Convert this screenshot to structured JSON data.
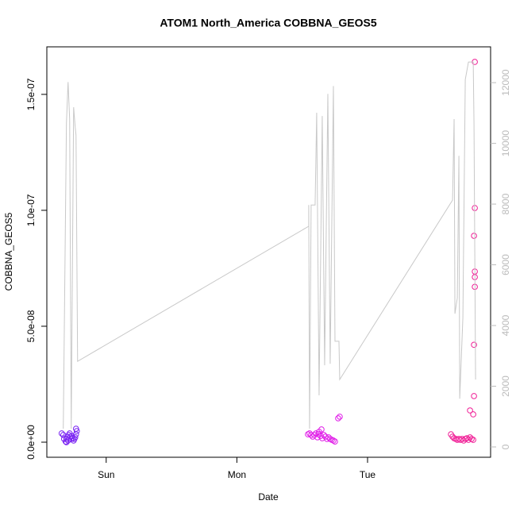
{
  "chart_data": {
    "type": "scatter",
    "title": "ATOM1 North_America COBBNA_GEOS5",
    "xlabel": "Date",
    "ylabel": "COBBNA_GEOS5",
    "xlim": [
      -10.9,
      70.6
    ],
    "xticks": [
      {
        "value": 0,
        "label": "Sun"
      },
      {
        "value": 24,
        "label": "Mon"
      },
      {
        "value": 48,
        "label": "Tue"
      }
    ],
    "ylim": [
      -6.5e-09,
      1.705e-07
    ],
    "yticks": [
      {
        "value": 0,
        "label": "0.0e+00"
      },
      {
        "value": 5e-08,
        "label": "5.0e-08"
      },
      {
        "value": 1e-07,
        "label": "1.0e-07"
      },
      {
        "value": 1.5e-07,
        "label": "1.5e-07"
      }
    ],
    "y2lim": [
      -340,
      13180
    ],
    "y2ticks": [
      0,
      2000,
      4000,
      6000,
      8000,
      10000,
      12000
    ],
    "series": [
      {
        "type": "scatter",
        "color": "#7a24f2",
        "x": [
          -8.17,
          -7.88,
          -7.73,
          -7.44,
          -7.3,
          -7.15,
          -6.86,
          -6.71,
          -6.57,
          -6.42,
          -6.27,
          -5.98,
          -5.84,
          -5.69,
          -5.54,
          -5.54,
          -5.4,
          -7.3,
          -7.0,
          -6.13
        ],
        "values": [
          3.8e-09,
          3.1e-09,
          1.4e-09,
          3e-10,
          1.4e-09,
          2.4e-09,
          3.1e-09,
          3.8e-09,
          2.4e-09,
          1.4e-09,
          2.7e-09,
          7e-10,
          1.4e-09,
          2.1e-09,
          3.4e-09,
          5.8e-09,
          4.8e-09,
          0,
          7e-10,
          1.7e-09
        ]
      },
      {
        "type": "scatter",
        "color": "#e01ee8",
        "x": [
          37.06,
          37.35,
          37.64,
          37.93,
          38.23,
          38.52,
          38.81,
          38.96,
          39.1,
          39.39,
          39.68,
          39.98,
          40.27,
          40.56,
          40.85,
          41.14,
          41.44,
          41.73,
          42.02,
          42.6,
          42.89,
          39.54
        ],
        "values": [
          3.4e-09,
          3.8e-09,
          3.1e-09,
          2.4e-09,
          3.1e-09,
          3.8e-09,
          2.1e-09,
          3.4e-09,
          4.5e-09,
          2.7e-09,
          1.7e-09,
          3.1e-09,
          2.4e-09,
          1.4e-09,
          2.1e-09,
          1.4e-09,
          1e-09,
          7e-10,
          3e-10,
          1.03e-08,
          1.1e-08,
          5.5e-09
        ]
      },
      {
        "type": "scatter",
        "color": "#f01e96",
        "x": [
          63.32,
          63.61,
          63.9,
          64.2,
          64.49,
          64.78,
          65.07,
          65.36,
          65.66,
          65.95,
          66.24,
          66.53,
          66.82,
          67.11,
          67.41,
          66.82,
          67.41,
          67.7,
          67.7,
          67.55,
          67.7,
          67.7,
          67.7,
          67.55,
          67.55
        ],
        "values": [
          3.4e-09,
          2.4e-09,
          1.7e-09,
          1.4e-09,
          1e-09,
          1.4e-09,
          1e-09,
          1.4e-09,
          7e-10,
          1.4e-09,
          1.7e-09,
          1e-09,
          2.1e-09,
          1.4e-09,
          1e-09,
          1.37e-08,
          1.2e-08,
          1.64e-07,
          1.01e-07,
          8.9e-08,
          7.36e-08,
          7.12e-08,
          6.7e-08,
          4.2e-08,
          1.99e-08
        ]
      },
      {
        "type": "line",
        "axis": "y2",
        "color": "#c8c8c8",
        "x": [
          -7.88,
          -7.3,
          -7.0,
          -6.71,
          -6.57,
          -6.42,
          -5.98,
          -5.69,
          -5.54,
          -5.25,
          37.2,
          37.2,
          37.35,
          37.64,
          38.37,
          38.66,
          39.1,
          39.68,
          40.12,
          40.71,
          41.14,
          41.73,
          42.02,
          42.75,
          42.89,
          63.61,
          63.9,
          64.05,
          64.49,
          64.78,
          64.93,
          65.51,
          65.95,
          66.53,
          67.41,
          67.55,
          67.84
        ],
        "values": [
          600,
          10670,
          12020,
          10800,
          5830,
          600,
          11190,
          10530,
          10270,
          2820,
          7270,
          7970,
          600,
          7970,
          7970,
          11010,
          1700,
          10900,
          2690,
          11630,
          2740,
          11890,
          3480,
          3480,
          2220,
          8130,
          10800,
          4390,
          4910,
          9590,
          1590,
          4260,
          12100,
          12680,
          12680,
          10670,
          2220
        ]
      }
    ]
  }
}
